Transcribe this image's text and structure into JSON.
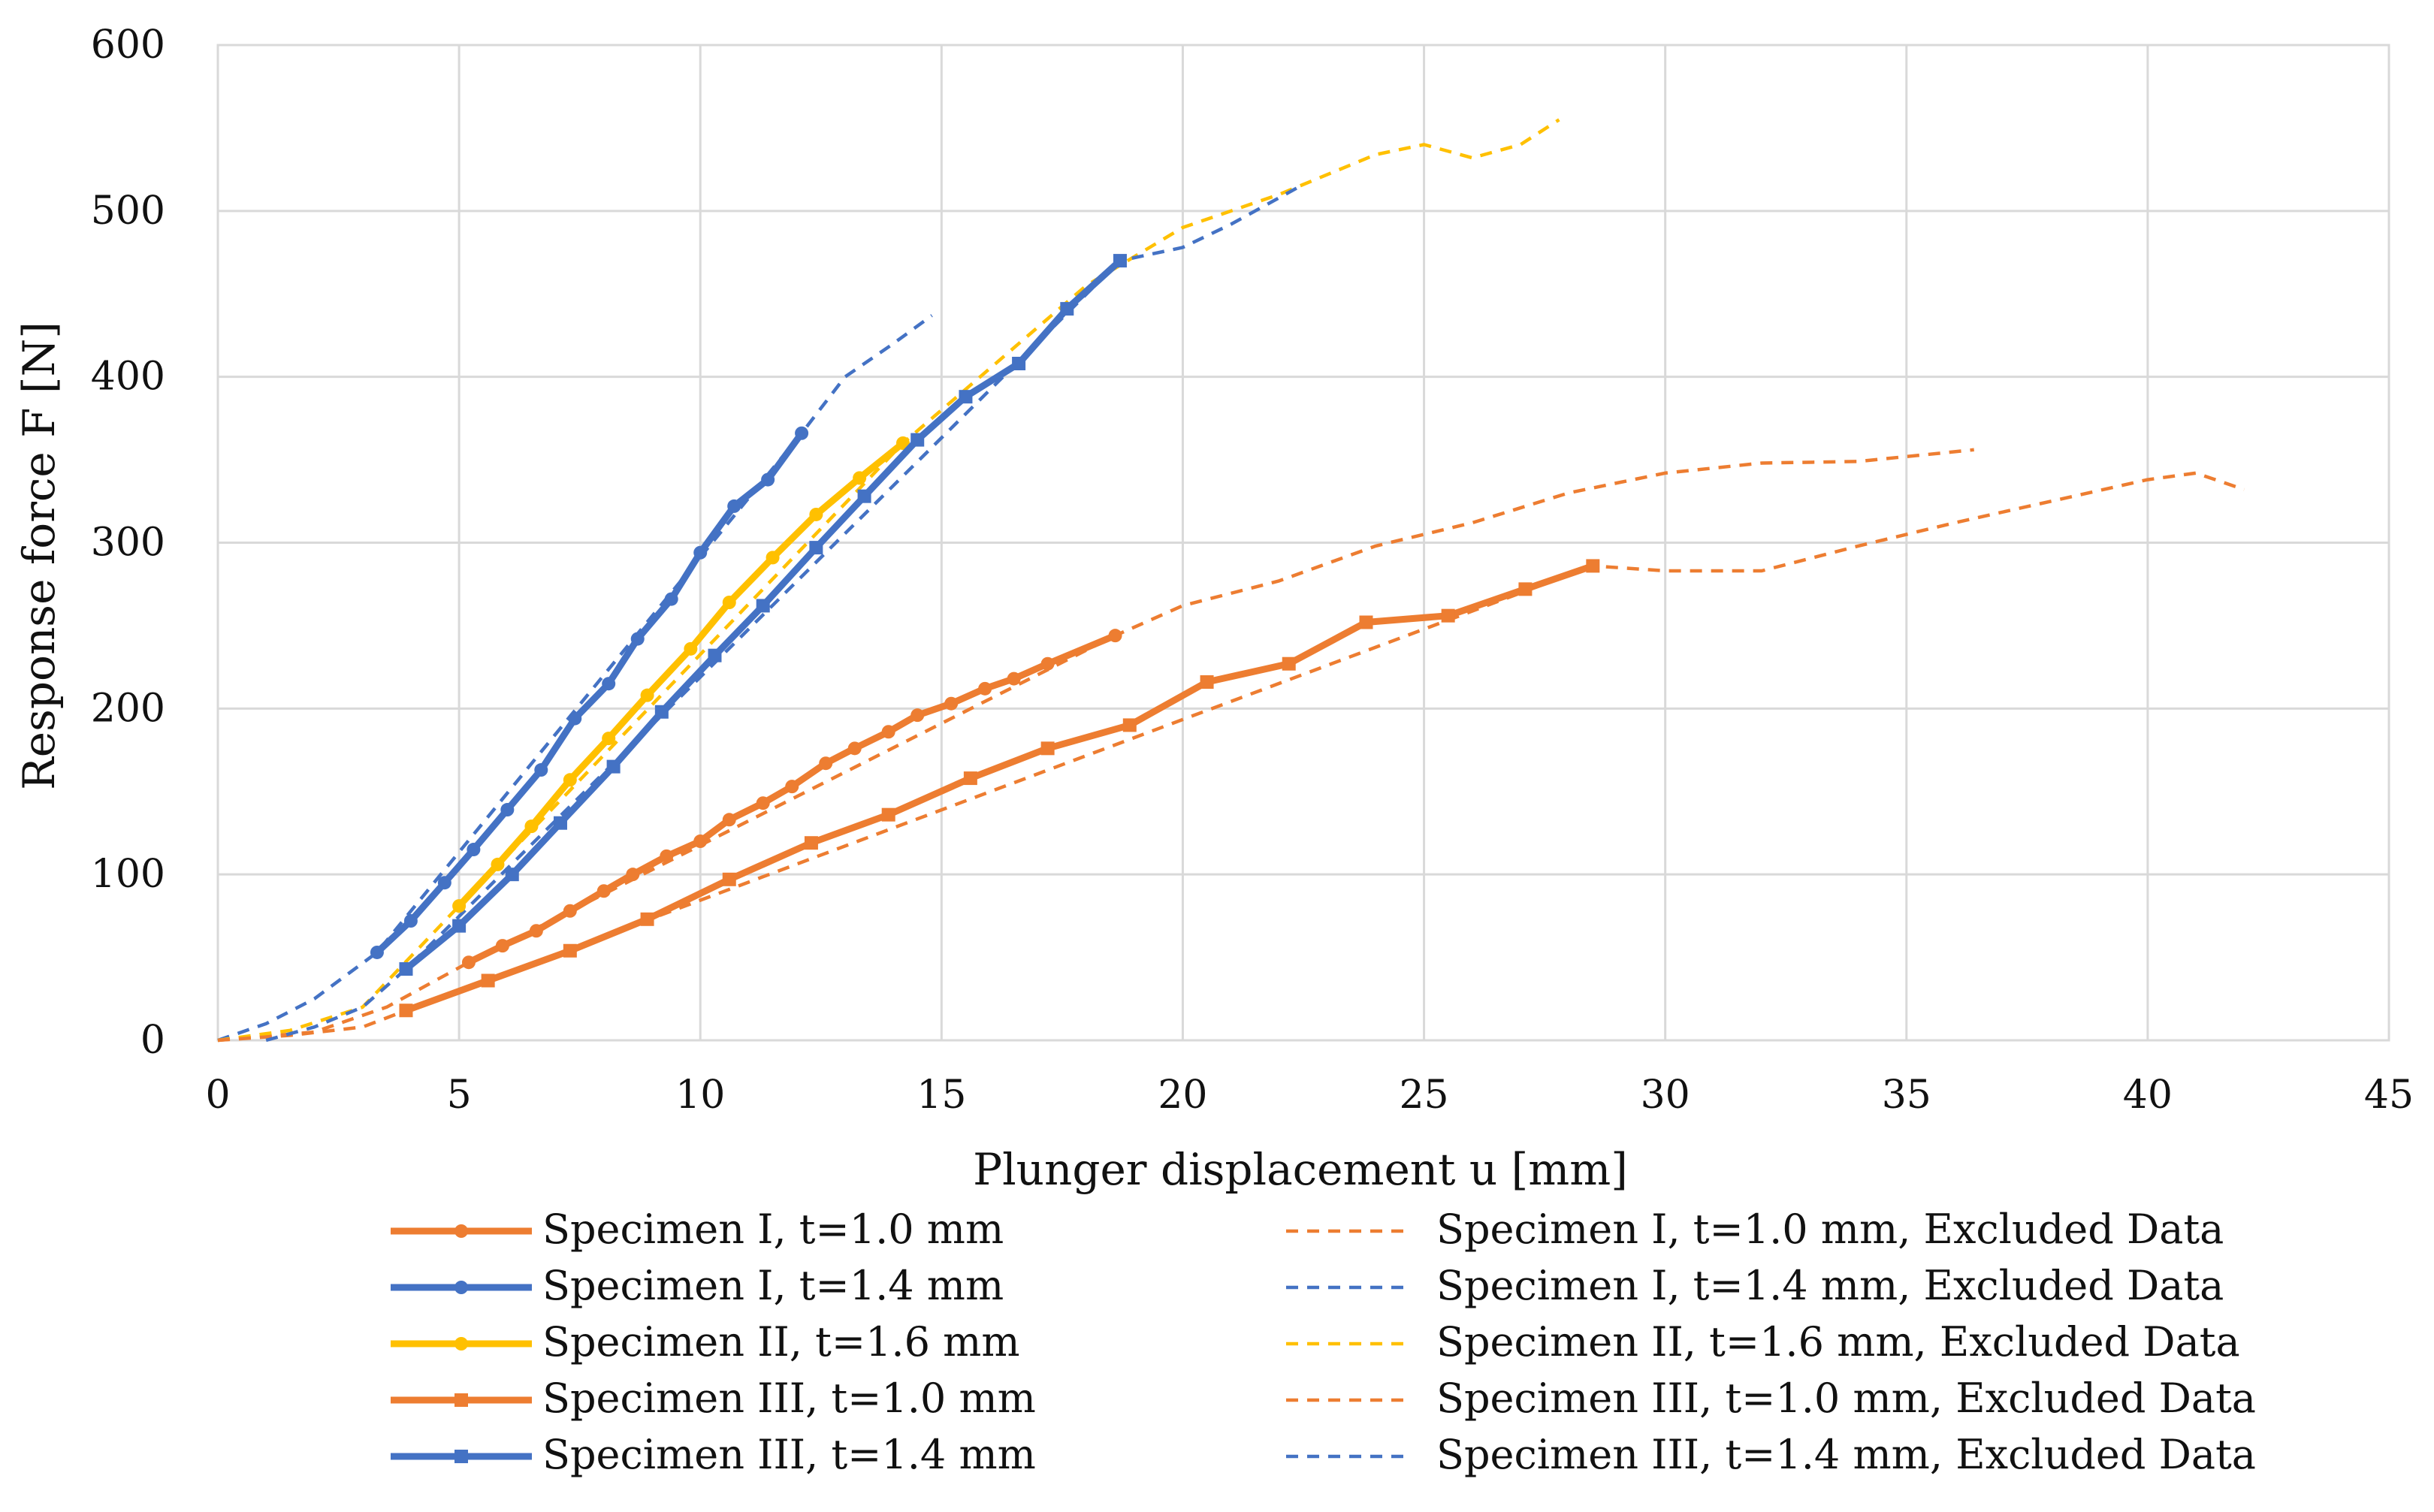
{
  "chart_data": {
    "type": "line",
    "xlabel": "Plunger displacement u [mm]",
    "ylabel": "Response force F [N]",
    "xlim": [
      0,
      45
    ],
    "ylim": [
      0,
      600
    ],
    "xticks": [
      "0",
      "5",
      "10",
      "15",
      "20",
      "25",
      "30",
      "35",
      "40",
      "45"
    ],
    "yticks": [
      "0",
      "100",
      "200",
      "300",
      "400",
      "500",
      "600"
    ],
    "grid": true,
    "legend_position": "bottom",
    "series": [
      {
        "name": "Specimen I, t=1.0 mm",
        "color": "#ED7D31",
        "style": "solid",
        "marker": "circle",
        "x": [
          5.2,
          5.9,
          6.6,
          7.3,
          8.0,
          8.6,
          9.3,
          10.0,
          10.6,
          11.3,
          11.9,
          12.6,
          13.2,
          13.9,
          14.5,
          15.2,
          15.9,
          16.5,
          17.2,
          18.6
        ],
        "y": [
          47,
          57,
          66,
          78,
          90,
          100,
          111,
          120,
          133,
          143,
          153,
          167,
          176,
          186,
          196,
          203,
          212,
          218,
          227,
          244
        ]
      },
      {
        "name": "Specimen I, t=1.4 mm",
        "color": "#4472C4",
        "style": "solid",
        "marker": "circle",
        "x": [
          3.3,
          4.0,
          4.7,
          5.3,
          6.0,
          6.7,
          7.4,
          8.1,
          8.7,
          9.4,
          10.0,
          10.7,
          11.4,
          12.1
        ],
        "y": [
          53,
          72,
          95,
          115,
          139,
          163,
          194,
          215,
          242,
          266,
          294,
          322,
          338,
          366
        ]
      },
      {
        "name": "Specimen II, t=1.6 mm",
        "color": "#FFC000",
        "style": "solid",
        "marker": "circle",
        "x": [
          5.0,
          5.8,
          6.5,
          7.3,
          8.1,
          8.9,
          9.8,
          10.6,
          11.5,
          12.4,
          13.3,
          14.2
        ],
        "y": [
          81,
          106,
          129,
          157,
          182,
          208,
          236,
          264,
          291,
          317,
          339,
          360
        ]
      },
      {
        "name": "Specimen III, t=1.0 mm",
        "color": "#ED7D31",
        "style": "solid",
        "marker": "square",
        "x": [
          3.9,
          5.6,
          7.3,
          8.9,
          10.6,
          12.3,
          13.9,
          15.6,
          17.2,
          18.9,
          20.5,
          22.2,
          23.8,
          25.5,
          27.1,
          28.5
        ],
        "y": [
          18,
          36,
          54,
          73,
          97,
          119,
          136,
          158,
          176,
          190,
          216,
          227,
          252,
          256,
          272,
          286
        ]
      },
      {
        "name": "Specimen III, t=1.4 mm",
        "color": "#4472C4",
        "style": "solid",
        "marker": "square",
        "x": [
          3.9,
          5.0,
          6.1,
          7.1,
          8.2,
          9.2,
          10.3,
          11.3,
          12.4,
          13.4,
          14.5,
          15.5,
          16.6,
          17.6,
          18.7
        ],
        "y": [
          43,
          69,
          100,
          131,
          165,
          198,
          232,
          262,
          297,
          328,
          362,
          388,
          408,
          441,
          470
        ]
      },
      {
        "name": "Specimen I, t=1.0 mm, Excluded Data",
        "color": "#ED7D31",
        "style": "dashed",
        "x": [
          0,
          2.0,
          3.5,
          5.2,
          18.6,
          20.0,
          22.0,
          24.0,
          26.0,
          28.0,
          30.0,
          32.0,
          34.0,
          36.4
        ],
        "y": [
          0,
          5,
          20,
          47,
          244,
          262,
          277,
          298,
          312,
          330,
          342,
          348,
          349,
          356
        ]
      },
      {
        "name": "Specimen I, t=1.4 mm, Excluded Data",
        "color": "#4472C4",
        "style": "dashed",
        "x": [
          0,
          1.0,
          2.0,
          3.3,
          12.1,
          13.0,
          14.0,
          14.8
        ],
        "y": [
          0,
          10,
          25,
          53,
          366,
          400,
          420,
          437
        ]
      },
      {
        "name": "Specimen II, t=1.6 mm, Excluded Data",
        "color": "#FFC000",
        "style": "dashed",
        "x": [
          0,
          1.5,
          3.0,
          5.0,
          14.2,
          16.0,
          18.0,
          20.0,
          22.0,
          24.0,
          25.0,
          26.0,
          27.0,
          27.8
        ],
        "y": [
          0,
          6,
          20,
          81,
          360,
          405,
          455,
          490,
          510,
          534,
          540,
          532,
          540,
          555
        ]
      },
      {
        "name": "Specimen III, t=1.0 mm, Excluded Data",
        "color": "#ED7D31",
        "style": "dashed",
        "x": [
          0,
          1.5,
          3.0,
          3.9,
          28.5,
          30.0,
          32.0,
          34.0,
          36.0,
          38.0,
          40.0,
          41.0,
          42.0
        ],
        "y": [
          0,
          3,
          8,
          18,
          286,
          283,
          283,
          298,
          312,
          325,
          338,
          342,
          332
        ]
      },
      {
        "name": "Specimen III, t=1.4 mm, Excluded Data",
        "color": "#4472C4",
        "style": "dashed",
        "x": [
          1.0,
          2.0,
          3.0,
          3.9,
          18.7,
          20.0,
          21.0,
          22.5
        ],
        "y": [
          0,
          8,
          20,
          43,
          470,
          478,
          492,
          516
        ]
      }
    ]
  }
}
